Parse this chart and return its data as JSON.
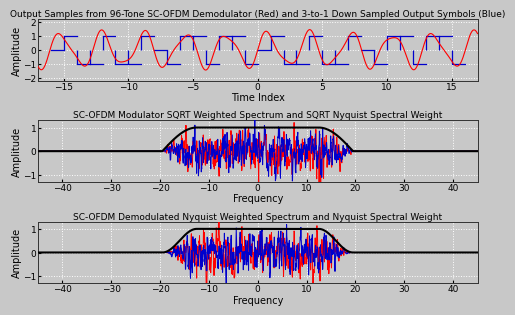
{
  "title1": "Output Samples from 96-Tone SC-OFDM Demodulator (Red) and 3-to-1 Down Sampled Output Symbols (Blue)",
  "title2": "SC-OFDM Modulator SQRT Weighted Spectrum and SQRT Nyquist Spectral Weight",
  "title3": "SC-OFDM Demodulated Nyquist Weighted Spectrum and Nyquist Spectral Weight",
  "xlabel1": "Time Index",
  "xlabel23": "Frequency",
  "ylabel": "Amplitude",
  "plot1_xlim": [
    -17,
    17
  ],
  "plot1_ylim": [
    -2.2,
    2.2
  ],
  "plot1_xticks": [
    -15,
    -10,
    -5,
    0,
    5,
    10,
    15
  ],
  "plot1_yticks": [
    -2,
    -1,
    0,
    1,
    2
  ],
  "plot23_xlim": [
    -45,
    45
  ],
  "plot23_ylim": [
    -1.3,
    1.3
  ],
  "plot23_xticks": [
    -40,
    -30,
    -20,
    -10,
    0,
    10,
    20,
    30,
    40
  ],
  "plot23_yticks": [
    -1,
    0,
    1
  ],
  "bg_color": "#c8c8c8",
  "plot_bg": "#c8c8c8",
  "red": "#ff0000",
  "blue": "#0000cd",
  "black": "#000000",
  "title_fontsize": 6.5,
  "label_fontsize": 7,
  "tick_fontsize": 6.5,
  "grid_color": "#ffffff",
  "grid_style": ":"
}
